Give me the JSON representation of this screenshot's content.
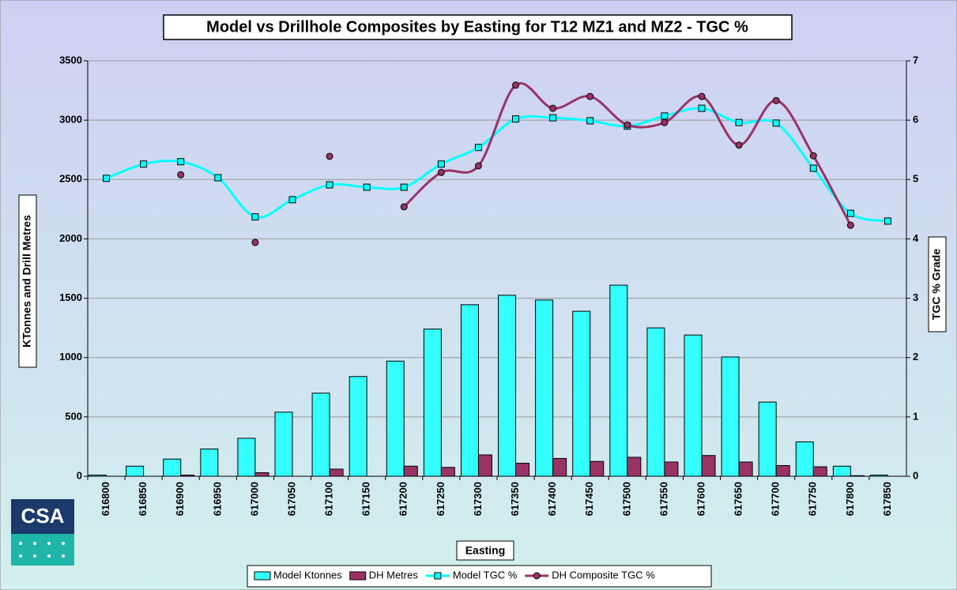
{
  "logo": "CSA",
  "chart_data": {
    "type": "bar-line",
    "title": "Model vs Drillhole Composites by Easting for T12 MZ1 and MZ2 - TGC %",
    "x_label": "Easting",
    "y_label": "KTonnes and Drill Metres",
    "y2_label": "TGC % Grade",
    "categories": [
      "616800",
      "616850",
      "616900",
      "616950",
      "617000",
      "617050",
      "617100",
      "617150",
      "617200",
      "617250",
      "617300",
      "617350",
      "617400",
      "617450",
      "617500",
      "617550",
      "617600",
      "617650",
      "617700",
      "617750",
      "617800",
      "617850"
    ],
    "ylim": [
      0,
      3500
    ],
    "yticks": [
      0,
      500,
      1000,
      1500,
      2000,
      2500,
      3000,
      3500
    ],
    "y2lim": [
      0,
      7
    ],
    "y2ticks": [
      0,
      1,
      2,
      3,
      4,
      5,
      6,
      7
    ],
    "grid": true,
    "legend": "bottom",
    "series": [
      {
        "name": "Model Ktonnes",
        "type": "bar",
        "color": "#33ffff",
        "values": [
          10,
          85,
          145,
          230,
          320,
          540,
          700,
          840,
          970,
          1240,
          1445,
          1525,
          1485,
          1390,
          1610,
          1250,
          1190,
          1005,
          625,
          290,
          85,
          10
        ]
      },
      {
        "name": "DH Metres",
        "type": "bar",
        "color": "#993366",
        "values": [
          0,
          0,
          10,
          0,
          30,
          0,
          60,
          0,
          85,
          75,
          180,
          110,
          150,
          125,
          160,
          120,
          175,
          120,
          90,
          80,
          5,
          0
        ]
      },
      {
        "name": "Model TGC %",
        "type": "line",
        "axis": "y2",
        "color": "#00ffff",
        "marker": "square",
        "values": [
          5.02,
          5.26,
          5.3,
          5.03,
          4.37,
          4.66,
          4.91,
          4.87,
          4.87,
          5.26,
          5.54,
          6.02,
          6.04,
          5.99,
          5.9,
          6.07,
          6.2,
          5.96,
          5.95,
          5.19,
          4.43,
          4.3
        ]
      },
      {
        "name": "DH Composite TGC %",
        "type": "line",
        "axis": "y2",
        "color": "#993366",
        "marker": "circle",
        "values": [
          null,
          null,
          5.08,
          null,
          3.94,
          null,
          5.39,
          null,
          4.54,
          5.12,
          5.23,
          6.59,
          6.2,
          6.4,
          5.92,
          5.96,
          6.4,
          5.58,
          6.33,
          5.4,
          4.23,
          null
        ]
      }
    ]
  }
}
